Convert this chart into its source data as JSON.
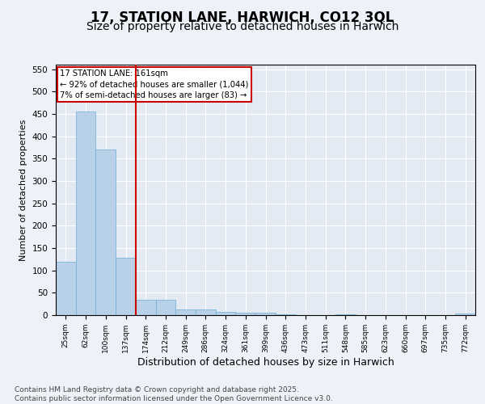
{
  "title": "17, STATION LANE, HARWICH, CO12 3QL",
  "subtitle": "Size of property relative to detached houses in Harwich",
  "xlabel": "Distribution of detached houses by size in Harwich",
  "ylabel": "Number of detached properties",
  "categories": [
    "25sqm",
    "62sqm",
    "100sqm",
    "137sqm",
    "174sqm",
    "212sqm",
    "249sqm",
    "286sqm",
    "324sqm",
    "361sqm",
    "399sqm",
    "436sqm",
    "473sqm",
    "511sqm",
    "548sqm",
    "585sqm",
    "623sqm",
    "660sqm",
    "697sqm",
    "735sqm",
    "772sqm"
  ],
  "values": [
    120,
    455,
    370,
    128,
    35,
    35,
    13,
    13,
    8,
    5,
    5,
    2,
    0,
    0,
    2,
    0,
    0,
    0,
    0,
    0,
    3
  ],
  "bar_color": "#b8d0e8",
  "bar_edge_color": "#6aaed6",
  "vline_x": 3.5,
  "vline_color": "#cc0000",
  "annotation_text": "17 STATION LANE: 161sqm\n← 92% of detached houses are smaller (1,044)\n7% of semi-detached houses are larger (83) →",
  "annotation_box_color": "#cc0000",
  "ylim": [
    0,
    560
  ],
  "yticks": [
    0,
    50,
    100,
    150,
    200,
    250,
    300,
    350,
    400,
    450,
    500,
    550
  ],
  "footnote": "Contains HM Land Registry data © Crown copyright and database right 2025.\nContains public sector information licensed under the Open Government Licence v3.0.",
  "background_color": "#eef2f8",
  "plot_background": "#e4eaf4",
  "grid_color": "#ffffff",
  "title_fontsize": 12,
  "subtitle_fontsize": 10,
  "xlabel_fontsize": 9,
  "ylabel_fontsize": 8,
  "footnote_fontsize": 6.5
}
